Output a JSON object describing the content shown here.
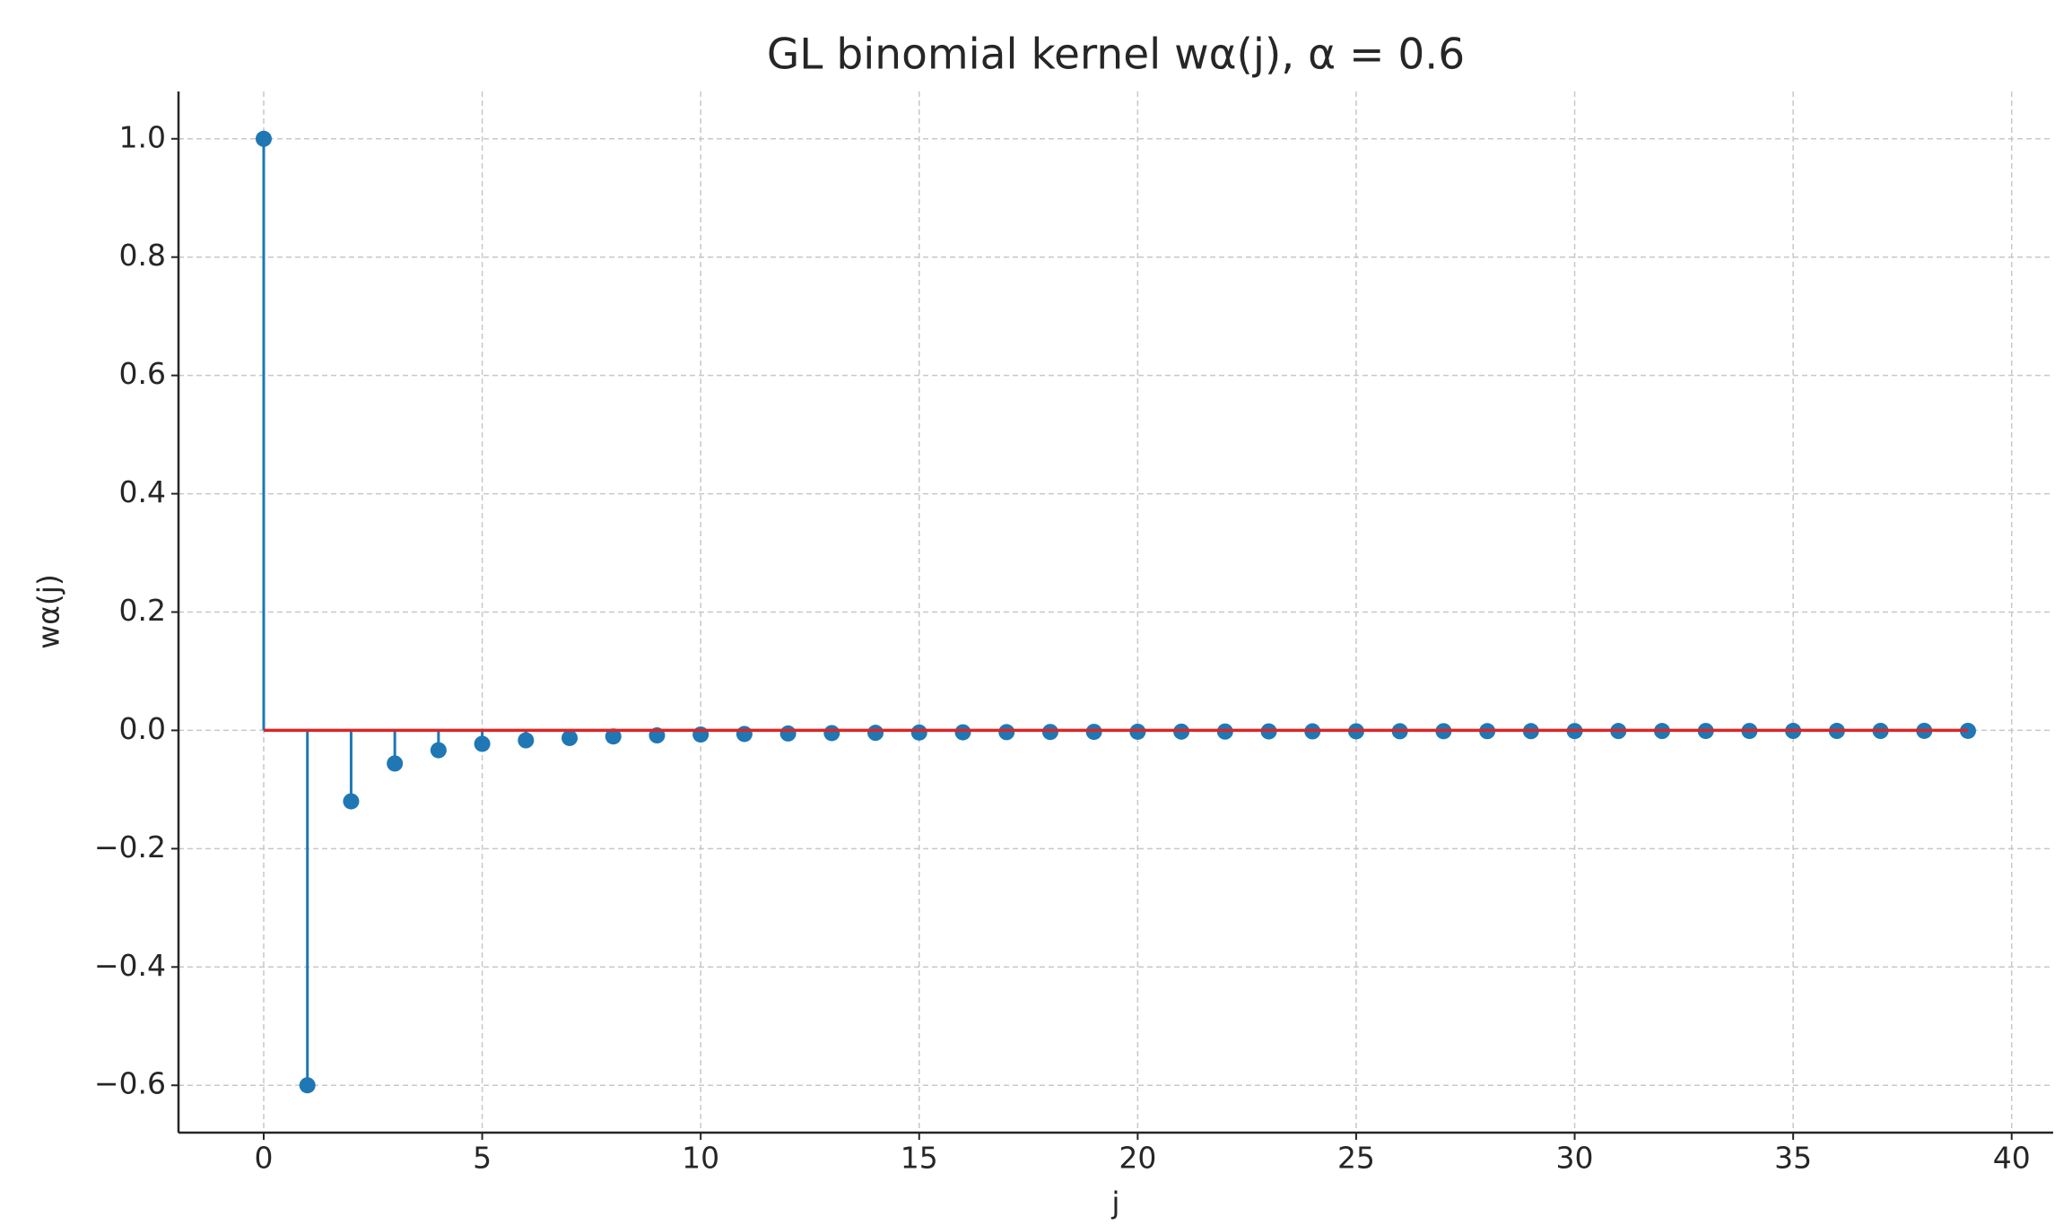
{
  "chart_data": {
    "type": "stem",
    "title": "GL binomial kernel wα(j), α = 0.6",
    "xlabel": "j",
    "ylabel": "wα(j)",
    "x": [
      0,
      1,
      2,
      3,
      4,
      5,
      6,
      7,
      8,
      9,
      10,
      11,
      12,
      13,
      14,
      15,
      16,
      17,
      18,
      19,
      20,
      21,
      22,
      23,
      24,
      25,
      26,
      27,
      28,
      29,
      30,
      31,
      32,
      33,
      34,
      35,
      36,
      37,
      38,
      39
    ],
    "series": [
      {
        "color": "#1f77b4",
        "baseline_color": "#d62728",
        "values": [
          1.0,
          -0.6,
          -0.12,
          -0.056,
          -0.0336,
          -0.0228,
          -0.0168,
          -0.0129,
          -0.0103,
          -0.0085,
          -0.0071,
          -0.0061,
          -0.0053,
          -0.0046,
          -0.0041,
          -0.0037,
          -0.0033,
          -0.003,
          -0.0027,
          -0.0025,
          -0.0023,
          -0.0021,
          -0.002,
          -0.0018,
          -0.0017,
          -0.0016,
          -0.0015,
          -0.0014,
          -0.0013,
          -0.0013,
          -0.0012,
          -0.0011,
          -0.0011,
          -0.001,
          -0.001,
          -0.0009,
          -0.0009,
          -0.0009,
          -0.0008,
          -0.0008
        ]
      }
    ],
    "xlim": [
      -1.95,
      40.95
    ],
    "xticks": [
      0,
      5,
      10,
      15,
      20,
      25,
      30,
      35,
      40
    ],
    "ylim": [
      -0.68,
      1.08
    ],
    "yticks": [
      {
        "value": -0.6,
        "label": "−0.6"
      },
      {
        "value": -0.4,
        "label": "−0.4"
      },
      {
        "value": -0.2,
        "label": "−0.2"
      },
      {
        "value": 0,
        "label": "0.0"
      },
      0.2,
      0.4,
      0.6,
      0.8,
      {
        "value": 1,
        "label": "1.0"
      }
    ],
    "grid": true
  }
}
